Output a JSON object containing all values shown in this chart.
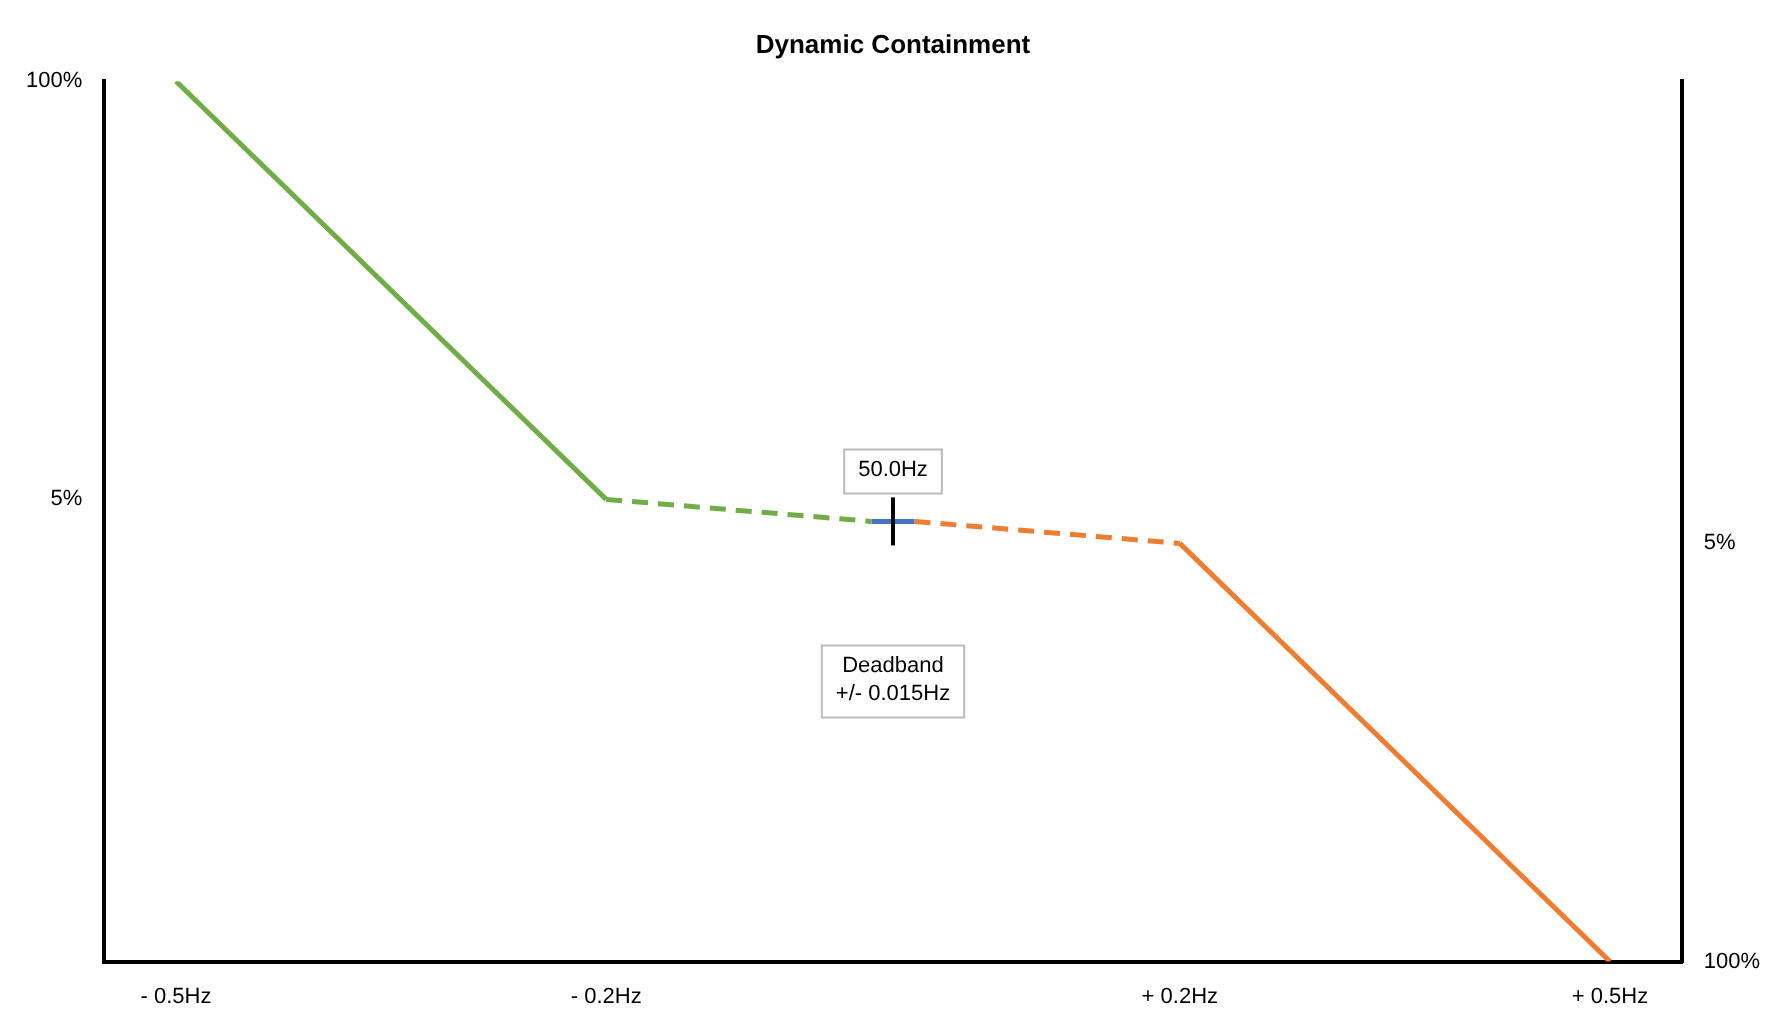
{
  "chart_data": {
    "type": "line",
    "title": "Dynamic Containment",
    "xlim": [
      -0.55,
      0.55
    ],
    "xticks": [
      {
        "value": -0.5,
        "label": "- 0.5Hz"
      },
      {
        "value": -0.2,
        "label": "- 0.2Hz"
      },
      {
        "value": 0.2,
        "label": "+ 0.2Hz"
      },
      {
        "value": 0.5,
        "label": "+ 0.5Hz"
      }
    ],
    "ylim": [
      -100,
      100
    ],
    "yticks": [
      {
        "value": 100,
        "label": "100%"
      },
      {
        "value": 5,
        "label": "5%"
      }
    ],
    "y2lim": [
      -100,
      100
    ],
    "y2ticks": [
      {
        "value": -5,
        "label": "5%"
      },
      {
        "value": -100,
        "label": "100%"
      }
    ],
    "grid": false,
    "legend": false,
    "marker": "none",
    "series": [
      {
        "color": "#70ad47",
        "x": [
          -0.5,
          -0.2
        ],
        "values": [
          100,
          5
        ],
        "line_style": "solid"
      },
      {
        "color": "#70ad47",
        "x": [
          -0.2,
          -0.015
        ],
        "values": [
          5,
          0
        ],
        "line_style": "dashed"
      },
      {
        "color": "#4472c4",
        "x": [
          -0.015,
          0.015
        ],
        "values": [
          0,
          0
        ],
        "line_style": "solid"
      },
      {
        "color": "#ed7d31",
        "x": [
          0.015,
          0.2
        ],
        "values": [
          0,
          -5
        ],
        "line_style": "dashed"
      },
      {
        "color": "#ed7d31",
        "x": [
          0.2,
          0.5
        ],
        "values": [
          -5,
          -100
        ],
        "line_style": "solid"
      }
    ],
    "annotations": [
      {
        "text": "50.0Hz",
        "x": 0,
        "y": 0
      },
      "Deadband +/- 0.015Hz"
    ]
  }
}
